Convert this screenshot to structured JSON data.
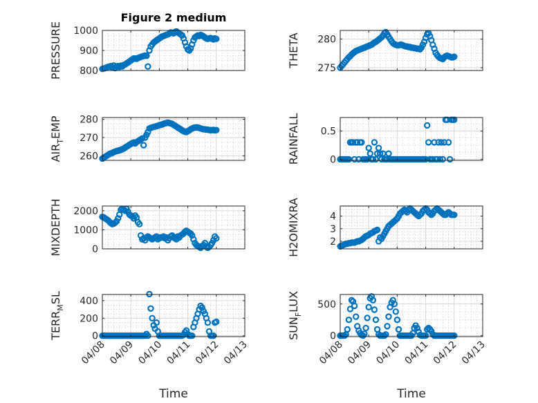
{
  "figure": {
    "title": "Figure 2 medium",
    "marker_color": "#0072BD",
    "x_tick_labels": [
      "04/08",
      "04/09",
      "04/10",
      "04/11",
      "04/12",
      "04/13"
    ],
    "x_axis_label": "Time"
  },
  "chart_data": [
    {
      "type": "scatter",
      "name": "pressure",
      "ylabel": "PRESSURE",
      "ylim": [
        800,
        1000
      ],
      "yticks": [
        800,
        900,
        1000
      ],
      "xlim": [
        0,
        5
      ],
      "grid": true,
      "x": [
        0.0,
        0.05,
        0.1,
        0.15,
        0.2,
        0.25,
        0.3,
        0.35,
        0.4,
        0.45,
        0.5,
        0.55,
        0.6,
        0.65,
        0.7,
        0.75,
        0.8,
        0.85,
        0.9,
        0.95,
        1.0,
        1.05,
        1.1,
        1.15,
        1.2,
        1.25,
        1.3,
        1.35,
        1.4,
        1.45,
        1.5,
        1.55,
        1.6,
        1.65,
        1.7,
        1.75,
        1.8,
        1.85,
        1.9,
        1.95,
        2.0,
        2.05,
        2.1,
        2.15,
        2.2,
        2.25,
        2.3,
        2.35,
        2.4,
        2.45,
        2.5,
        2.55,
        2.6,
        2.65,
        2.7,
        2.75,
        2.8,
        2.85,
        2.9,
        2.95,
        3.0,
        3.05,
        3.1,
        3.15,
        3.2,
        3.25,
        3.3,
        3.35,
        3.4,
        3.45,
        3.5,
        3.55,
        3.6,
        3.65,
        3.7,
        3.75,
        3.8,
        3.85,
        3.9,
        3.95,
        4.0
      ],
      "y": [
        808,
        810,
        812,
        815,
        818,
        820,
        822,
        815,
        825,
        812,
        820,
        822,
        818,
        824,
        820,
        828,
        830,
        835,
        840,
        845,
        850,
        855,
        860,
        860,
        858,
        862,
        865,
        868,
        870,
        872,
        875,
        873,
        820,
        900,
        920,
        930,
        940,
        945,
        950,
        955,
        960,
        965,
        970,
        972,
        975,
        978,
        980,
        985,
        990,
        988,
        985,
        992,
        995,
        990,
        985,
        980,
        975,
        960,
        940,
        920,
        905,
        900,
        910,
        930,
        950,
        965,
        970,
        975,
        972,
        978,
        975,
        970,
        965,
        960,
        958,
        960,
        962,
        958,
        955,
        960,
        958
      ]
    },
    {
      "type": "scatter",
      "name": "theta",
      "ylabel": "THETA",
      "ylim": [
        274.5,
        281.5
      ],
      "yticks": [
        275,
        280
      ],
      "xlim": [
        0,
        5
      ],
      "grid": true,
      "x": [
        0.0,
        0.05,
        0.1,
        0.15,
        0.2,
        0.25,
        0.3,
        0.35,
        0.4,
        0.45,
        0.5,
        0.55,
        0.6,
        0.65,
        0.7,
        0.75,
        0.8,
        0.85,
        0.9,
        0.95,
        1.0,
        1.05,
        1.1,
        1.15,
        1.2,
        1.25,
        1.3,
        1.35,
        1.4,
        1.45,
        1.5,
        1.55,
        1.6,
        1.65,
        1.7,
        1.75,
        1.8,
        1.85,
        1.9,
        1.95,
        2.0,
        2.05,
        2.1,
        2.15,
        2.2,
        2.25,
        2.3,
        2.35,
        2.4,
        2.45,
        2.5,
        2.55,
        2.6,
        2.65,
        2.7,
        2.75,
        2.8,
        2.85,
        2.9,
        2.95,
        3.0,
        3.05,
        3.1,
        3.15,
        3.2,
        3.25,
        3.3,
        3.35,
        3.4,
        3.45,
        3.5,
        3.55,
        3.6,
        3.65,
        3.7,
        3.75,
        3.8,
        3.85,
        3.9,
        3.95,
        4.0
      ],
      "y": [
        275.0,
        275.3,
        275.6,
        275.9,
        276.2,
        276.5,
        276.8,
        277.0,
        277.3,
        277.5,
        277.7,
        277.9,
        278.0,
        278.1,
        278.2,
        278.3,
        278.4,
        278.5,
        278.6,
        278.7,
        278.8,
        278.9,
        279.0,
        279.2,
        279.4,
        279.5,
        279.7,
        279.9,
        280.1,
        280.3,
        280.6,
        281.0,
        281.2,
        280.8,
        280.4,
        280.0,
        279.6,
        279.3,
        279.1,
        279.0,
        278.9,
        278.9,
        279.0,
        279.0,
        278.9,
        278.8,
        278.7,
        278.7,
        278.6,
        278.6,
        278.5,
        278.5,
        278.4,
        278.4,
        278.3,
        278.3,
        278.2,
        278.5,
        279.0,
        279.5,
        280.2,
        280.8,
        281.0,
        280.5,
        279.8,
        279.0,
        278.3,
        277.6,
        277.2,
        276.9,
        276.7,
        276.6,
        276.5,
        276.8,
        277.0,
        277.1,
        277.0,
        276.9,
        276.8,
        276.8,
        276.9
      ]
    },
    {
      "type": "scatter",
      "name": "air_temp",
      "ylabel": "AIR_TEMP",
      "ylim": [
        257.5,
        281
      ],
      "yticks": [
        260,
        270,
        280
      ],
      "xlim": [
        0,
        5
      ],
      "grid": true,
      "x": [
        0.0,
        0.05,
        0.1,
        0.15,
        0.2,
        0.25,
        0.3,
        0.35,
        0.4,
        0.45,
        0.5,
        0.55,
        0.6,
        0.65,
        0.7,
        0.75,
        0.8,
        0.85,
        0.9,
        0.95,
        1.0,
        1.05,
        1.1,
        1.15,
        1.2,
        1.25,
        1.3,
        1.35,
        1.4,
        1.45,
        1.5,
        1.55,
        1.6,
        1.65,
        1.7,
        1.75,
        1.8,
        1.85,
        1.9,
        1.95,
        2.0,
        2.05,
        2.1,
        2.15,
        2.2,
        2.25,
        2.3,
        2.35,
        2.4,
        2.45,
        2.5,
        2.55,
        2.6,
        2.65,
        2.7,
        2.75,
        2.8,
        2.85,
        2.9,
        2.95,
        3.0,
        3.05,
        3.1,
        3.15,
        3.2,
        3.25,
        3.3,
        3.35,
        3.4,
        3.45,
        3.5,
        3.55,
        3.6,
        3.65,
        3.7,
        3.75,
        3.8,
        3.85,
        3.9,
        3.95,
        4.0
      ],
      "y": [
        258.5,
        259.0,
        259.5,
        260.0,
        260.5,
        261.0,
        261.3,
        261.6,
        262.0,
        262.3,
        262.6,
        262.8,
        263.0,
        263.3,
        263.6,
        264.0,
        264.5,
        265.0,
        265.5,
        266.0,
        266.5,
        267.0,
        267.3,
        266.8,
        267.5,
        268.0,
        268.5,
        269.0,
        269.5,
        265.8,
        270.0,
        271.5,
        273.0,
        275.0,
        275.3,
        275.6,
        275.8,
        276.0,
        276.3,
        276.5,
        276.8,
        277.0,
        277.2,
        277.5,
        277.8,
        278.0,
        278.2,
        278.0,
        277.8,
        277.5,
        277.0,
        276.5,
        276.0,
        275.5,
        275.0,
        274.5,
        274.0,
        273.5,
        273.2,
        273.0,
        273.5,
        274.0,
        274.5,
        275.0,
        275.3,
        275.5,
        275.6,
        275.5,
        275.3,
        275.0,
        274.8,
        274.6,
        274.5,
        274.4,
        274.3,
        274.2,
        274.0,
        274.1,
        274.2,
        274.0,
        274.1
      ]
    },
    {
      "type": "scatter",
      "name": "rainfall",
      "ylabel": "RAINFALL",
      "ylim": [
        -0.02,
        0.74
      ],
      "yticks": [
        0,
        0.5
      ],
      "xlim": [
        0,
        5
      ],
      "grid": true,
      "x": [
        0.0,
        0.05,
        0.1,
        0.15,
        0.2,
        0.25,
        0.3,
        0.35,
        0.4,
        0.45,
        0.5,
        0.55,
        0.6,
        0.65,
        0.7,
        0.75,
        0.8,
        0.85,
        0.9,
        0.95,
        1.0,
        1.05,
        1.1,
        1.15,
        1.2,
        1.25,
        1.3,
        1.35,
        1.4,
        1.45,
        1.5,
        1.55,
        1.6,
        1.65,
        1.7,
        1.75,
        1.8,
        1.85,
        1.9,
        1.95,
        2.0,
        2.05,
        2.1,
        2.15,
        2.2,
        2.25,
        2.3,
        2.35,
        2.4,
        2.45,
        2.5,
        2.55,
        2.6,
        2.65,
        2.7,
        2.75,
        2.8,
        2.85,
        2.9,
        2.95,
        3.0,
        3.05,
        3.1,
        3.15,
        3.2,
        3.25,
        3.3,
        3.35,
        3.4,
        3.45,
        3.5,
        3.55,
        3.6,
        3.65,
        3.7,
        3.75,
        3.8,
        3.85,
        3.9,
        3.95,
        4.0
      ],
      "y": [
        0,
        0,
        0,
        0,
        0,
        0,
        0,
        0.3,
        0.3,
        0.3,
        0,
        0.3,
        0.3,
        0,
        0.3,
        0.3,
        0,
        0,
        0,
        0,
        0.2,
        0.1,
        0,
        0,
        0.3,
        0,
        0.1,
        0.2,
        0.1,
        0,
        0.1,
        0,
        0,
        0,
        0.1,
        0,
        0,
        0,
        0,
        0,
        0,
        0,
        0,
        0,
        0,
        0,
        0,
        0,
        0,
        0,
        0,
        0,
        0,
        0,
        0,
        0,
        0,
        0,
        0,
        0,
        0,
        0.6,
        0.3,
        0,
        0,
        0,
        0.3,
        0,
        0,
        0.3,
        0,
        0.3,
        0,
        0.3,
        0.7,
        0.7,
        0.3,
        0,
        0.7,
        0.7,
        0.7
      ]
    },
    {
      "type": "scatter",
      "name": "mixdepth",
      "ylabel": "MIXDEPTH",
      "ylim": [
        0,
        2250
      ],
      "yticks": [
        0,
        1000,
        2000
      ],
      "xlim": [
        0,
        5
      ],
      "grid": true,
      "x": [
        0.0,
        0.05,
        0.1,
        0.15,
        0.2,
        0.25,
        0.3,
        0.35,
        0.4,
        0.45,
        0.5,
        0.55,
        0.6,
        0.65,
        0.7,
        0.75,
        0.8,
        0.85,
        0.9,
        0.95,
        1.0,
        1.05,
        1.1,
        1.15,
        1.2,
        1.25,
        1.3,
        1.35,
        1.4,
        1.45,
        1.5,
        1.55,
        1.6,
        1.65,
        1.7,
        1.75,
        1.8,
        1.85,
        1.9,
        1.95,
        2.0,
        2.05,
        2.1,
        2.15,
        2.2,
        2.25,
        2.3,
        2.35,
        2.4,
        2.45,
        2.5,
        2.55,
        2.6,
        2.65,
        2.7,
        2.75,
        2.8,
        2.85,
        2.9,
        2.95,
        3.0,
        3.05,
        3.1,
        3.15,
        3.2,
        3.25,
        3.3,
        3.35,
        3.4,
        3.45,
        3.5,
        3.55,
        3.6,
        3.65,
        3.7,
        3.75,
        3.8,
        3.85,
        3.9,
        3.95,
        4.0
      ],
      "y": [
        1680,
        1650,
        1600,
        1550,
        1500,
        1420,
        1350,
        1300,
        1320,
        1380,
        1450,
        1600,
        1800,
        2050,
        2100,
        2050,
        2000,
        2100,
        1950,
        1800,
        1750,
        1700,
        1600,
        1750,
        1650,
        1400,
        1300,
        700,
        500,
        550,
        450,
        600,
        650,
        600,
        550,
        500,
        550,
        600,
        650,
        500,
        550,
        600,
        600,
        650,
        550,
        600,
        450,
        550,
        650,
        700,
        600,
        550,
        500,
        650,
        600,
        700,
        750,
        800,
        900,
        950,
        900,
        850,
        800,
        700,
        500,
        300,
        200,
        150,
        100,
        50,
        150,
        200,
        300,
        100,
        50,
        100,
        200,
        300,
        450,
        650,
        550
      ]
    },
    {
      "type": "scatter",
      "name": "h2omixra",
      "ylabel": "H2OMIXRA",
      "ylim": [
        1.4,
        4.8
      ],
      "yticks": [
        2,
        3,
        4
      ],
      "xlim": [
        0,
        5
      ],
      "grid": true,
      "x": [
        0.0,
        0.05,
        0.1,
        0.15,
        0.2,
        0.25,
        0.3,
        0.35,
        0.4,
        0.45,
        0.5,
        0.55,
        0.6,
        0.65,
        0.7,
        0.75,
        0.8,
        0.85,
        0.9,
        0.95,
        1.0,
        1.05,
        1.1,
        1.15,
        1.2,
        1.25,
        1.3,
        1.35,
        1.4,
        1.45,
        1.5,
        1.55,
        1.6,
        1.65,
        1.7,
        1.75,
        1.8,
        1.85,
        1.9,
        1.95,
        2.0,
        2.05,
        2.1,
        2.15,
        2.2,
        2.25,
        2.3,
        2.35,
        2.4,
        2.45,
        2.5,
        2.55,
        2.6,
        2.65,
        2.7,
        2.75,
        2.8,
        2.85,
        2.9,
        2.95,
        3.0,
        3.05,
        3.1,
        3.15,
        3.2,
        3.25,
        3.3,
        3.35,
        3.4,
        3.45,
        3.5,
        3.55,
        3.6,
        3.65,
        3.7,
        3.75,
        3.8,
        3.85,
        3.9,
        3.95,
        4.0
      ],
      "y": [
        1.6,
        1.65,
        1.7,
        1.75,
        1.8,
        1.8,
        1.85,
        1.85,
        1.9,
        1.9,
        1.9,
        1.95,
        2.0,
        2.0,
        2.05,
        2.1,
        2.2,
        2.3,
        2.4,
        2.45,
        2.5,
        2.6,
        2.65,
        2.7,
        2.8,
        2.85,
        2.9,
        2.0,
        2.3,
        2.2,
        2.4,
        2.6,
        2.8,
        3.0,
        3.2,
        3.3,
        3.4,
        3.5,
        3.6,
        3.7,
        3.8,
        4.0,
        4.2,
        4.3,
        4.4,
        4.5,
        4.4,
        4.3,
        4.5,
        4.6,
        4.5,
        4.4,
        4.3,
        4.2,
        4.1,
        4.0,
        4.1,
        4.2,
        4.4,
        4.5,
        4.6,
        4.5,
        4.3,
        4.2,
        4.1,
        4.2,
        4.4,
        4.5,
        4.6,
        4.5,
        4.4,
        4.3,
        4.2,
        4.1,
        4.1,
        4.2,
        4.3,
        4.2,
        4.1,
        4.1,
        4.1
      ]
    },
    {
      "type": "scatter",
      "name": "terr_msl",
      "ylabel": "TERR_MSL",
      "ylim": [
        -10,
        470
      ],
      "yticks": [
        0,
        200,
        400
      ],
      "xlim": [
        0,
        5
      ],
      "grid": true,
      "x": [
        0.0,
        0.05,
        0.1,
        0.15,
        0.2,
        0.25,
        0.3,
        0.35,
        0.4,
        0.45,
        0.5,
        0.55,
        0.6,
        0.65,
        0.7,
        0.75,
        0.8,
        0.85,
        0.9,
        0.95,
        1.0,
        1.05,
        1.1,
        1.15,
        1.2,
        1.25,
        1.3,
        1.35,
        1.4,
        1.45,
        1.5,
        1.55,
        1.6,
        1.65,
        1.7,
        1.75,
        1.8,
        1.85,
        1.9,
        1.95,
        2.0,
        2.05,
        2.1,
        2.15,
        2.2,
        2.25,
        2.3,
        2.35,
        2.4,
        2.45,
        2.5,
        2.55,
        2.6,
        2.65,
        2.7,
        2.75,
        2.8,
        2.85,
        2.9,
        2.95,
        3.0,
        3.05,
        3.1,
        3.15,
        3.2,
        3.25,
        3.3,
        3.35,
        3.4,
        3.45,
        3.5,
        3.55,
        3.6,
        3.65,
        3.7,
        3.75,
        3.8,
        3.85,
        3.9,
        3.95,
        4.0
      ],
      "y": [
        0,
        0,
        0,
        0,
        0,
        0,
        0,
        0,
        0,
        0,
        0,
        0,
        0,
        0,
        0,
        0,
        0,
        0,
        0,
        0,
        0,
        0,
        0,
        0,
        0,
        0,
        0,
        0,
        0,
        0,
        0,
        20,
        0,
        475,
        310,
        200,
        120,
        80,
        150,
        50,
        0,
        0,
        0,
        0,
        0,
        0,
        0,
        0,
        0,
        0,
        0,
        0,
        0,
        0,
        0,
        0,
        0,
        10,
        40,
        60,
        20,
        0,
        0,
        0,
        100,
        150,
        200,
        250,
        300,
        340,
        320,
        280,
        250,
        200,
        150,
        50,
        0,
        0,
        0,
        150,
        160
      ]
    },
    {
      "type": "scatter",
      "name": "sun_flux",
      "ylabel": "SUN_FLUX",
      "ylim": [
        -15,
        650
      ],
      "yticks": [
        0,
        500
      ],
      "xlim": [
        0,
        5
      ],
      "grid": true,
      "x": [
        0.0,
        0.05,
        0.1,
        0.15,
        0.2,
        0.25,
        0.3,
        0.35,
        0.4,
        0.45,
        0.5,
        0.55,
        0.6,
        0.65,
        0.7,
        0.75,
        0.8,
        0.85,
        0.9,
        0.95,
        1.0,
        1.05,
        1.1,
        1.15,
        1.2,
        1.25,
        1.3,
        1.35,
        1.4,
        1.45,
        1.5,
        1.55,
        1.6,
        1.65,
        1.7,
        1.75,
        1.8,
        1.85,
        1.9,
        1.95,
        2.0,
        2.05,
        2.1,
        2.15,
        2.2,
        2.25,
        2.3,
        2.35,
        2.4,
        2.45,
        2.5,
        2.55,
        2.6,
        2.65,
        2.7,
        2.75,
        2.8,
        2.85,
        2.9,
        2.95,
        3.0,
        3.05,
        3.1,
        3.15,
        3.2,
        3.25,
        3.3,
        3.35,
        3.4,
        3.45,
        3.5,
        3.55,
        3.6,
        3.65,
        3.7,
        3.75,
        3.8,
        3.85,
        3.9,
        3.95,
        4.0
      ],
      "y": [
        0,
        0,
        0,
        0,
        20,
        100,
        250,
        420,
        560,
        540,
        470,
        300,
        150,
        80,
        40,
        10,
        0,
        30,
        120,
        280,
        450,
        590,
        620,
        560,
        410,
        250,
        100,
        20,
        0,
        0,
        0,
        0,
        20,
        150,
        300,
        450,
        520,
        560,
        500,
        380,
        250,
        100,
        0,
        0,
        0,
        0,
        0,
        0,
        0,
        0,
        0,
        40,
        120,
        160,
        120,
        60,
        10,
        0,
        0,
        0,
        0,
        100,
        120,
        100,
        70,
        20,
        0,
        0,
        0,
        0,
        0,
        0,
        0,
        0,
        0,
        0,
        0,
        0,
        0,
        0,
        0
      ]
    }
  ]
}
